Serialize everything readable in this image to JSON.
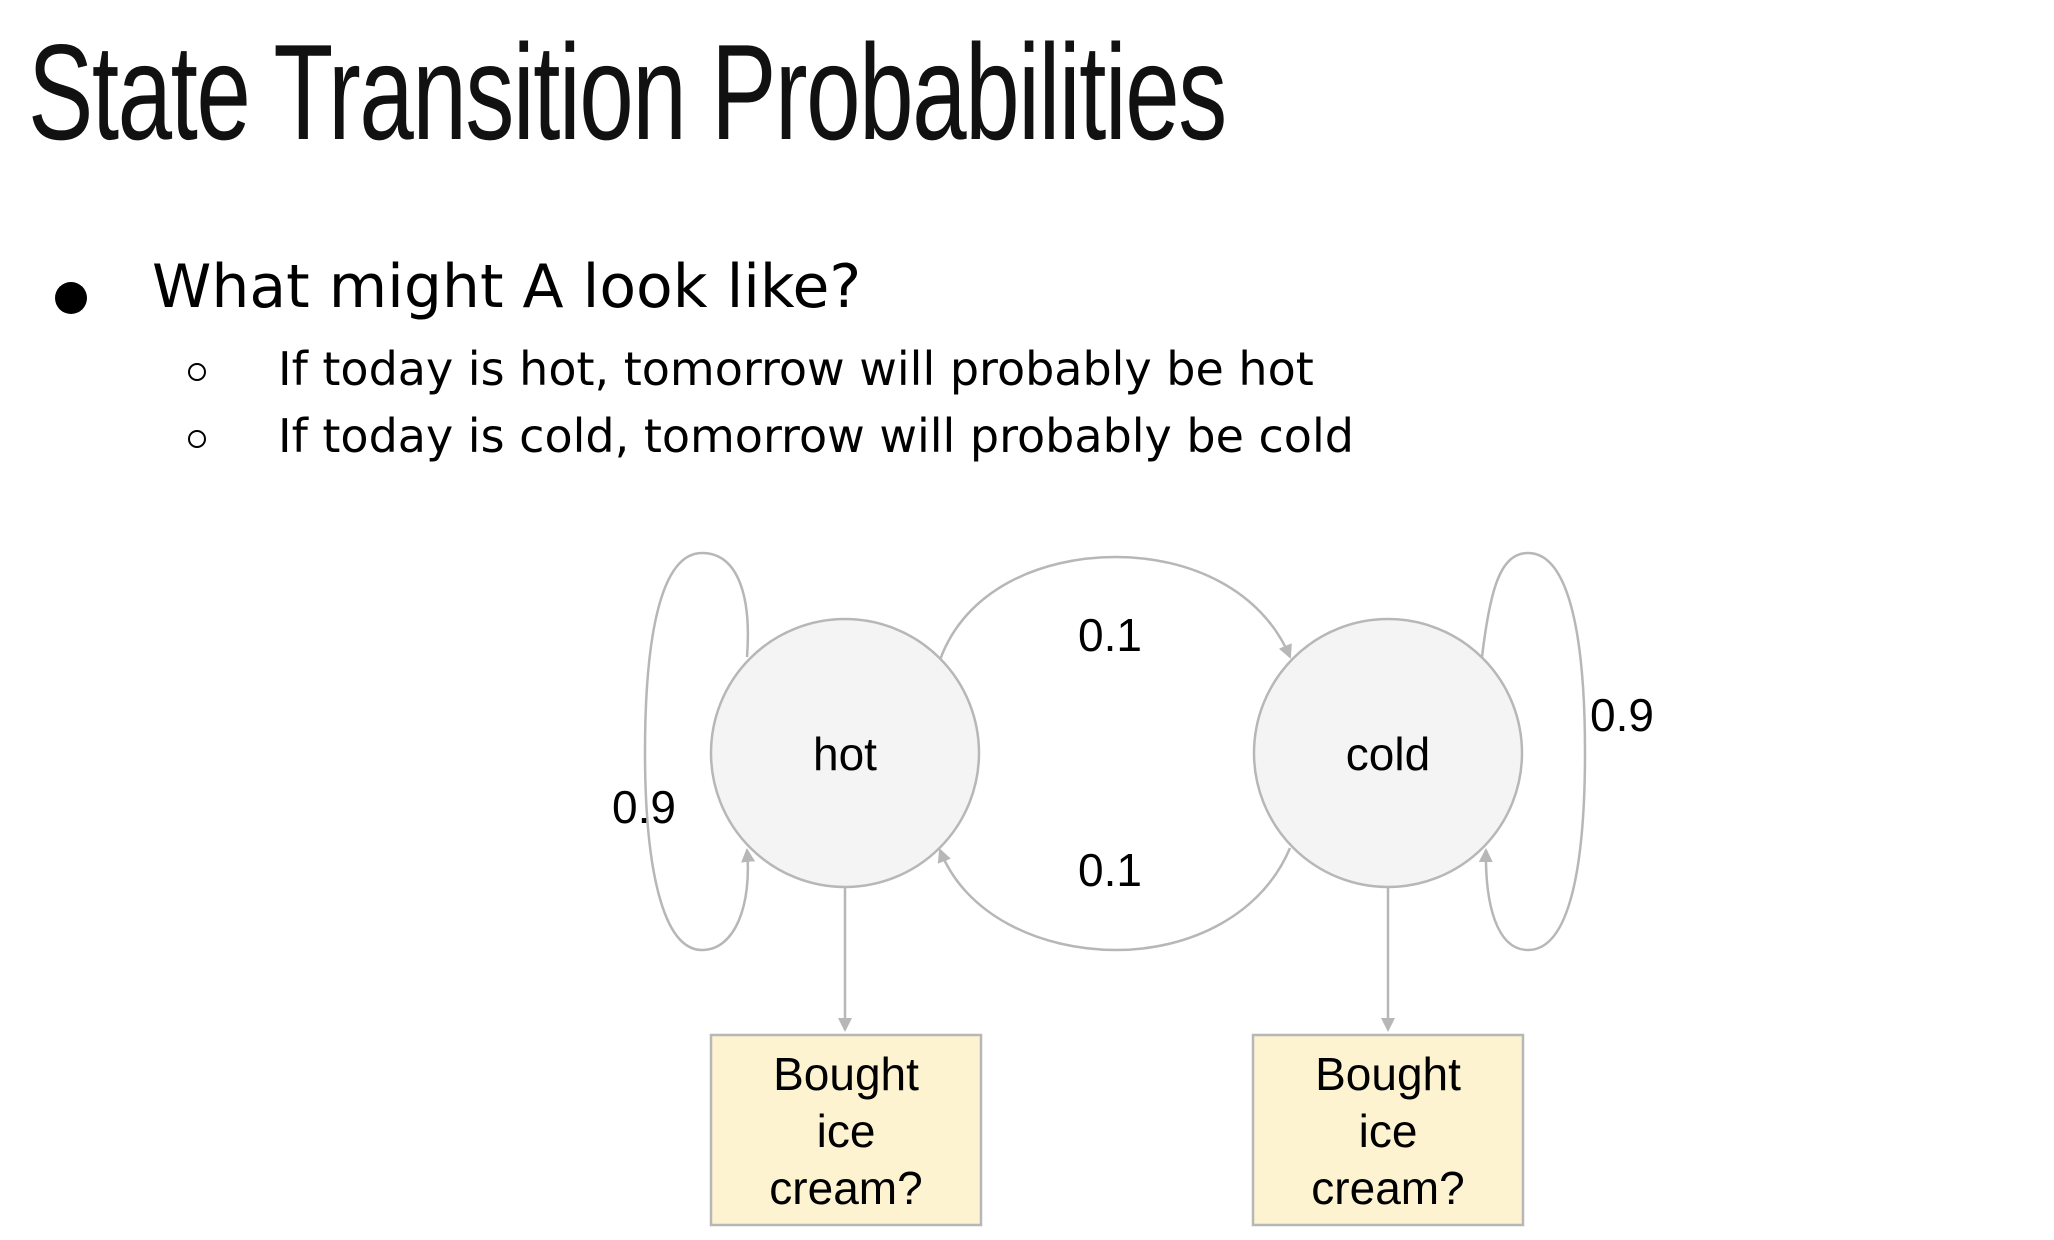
{
  "title": "State Transition Probabilities",
  "bullets": {
    "main": "What might A look like?",
    "sub": [
      "If today is hot, tomorrow will probably be hot",
      "If today is cold, tomorrow will probably be cold"
    ]
  },
  "diagram": {
    "states": {
      "hot": "hot",
      "cold": "cold"
    },
    "transitions": {
      "hot_to_hot": "0.9",
      "hot_to_cold": "0.1",
      "cold_to_hot": "0.1",
      "cold_to_cold": "0.9"
    },
    "observations": {
      "hot": [
        "Bought",
        "ice",
        "cream?"
      ],
      "cold": [
        "Bought",
        "ice",
        "cream?"
      ]
    },
    "colors": {
      "state_fill": "#f4f4f4",
      "state_stroke": "#b7b7b7",
      "edge": "#b7b7b7",
      "observation_fill": "#fdf3d0",
      "observation_stroke": "#b7b7b7"
    }
  }
}
